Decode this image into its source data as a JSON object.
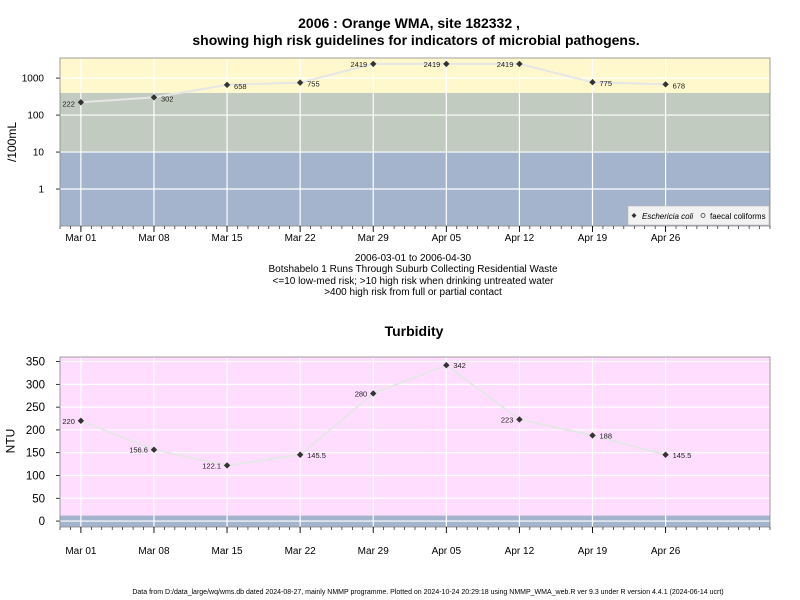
{
  "chart1": {
    "title_line1": "2006 : Orange WMA, site 182332 ,",
    "title_line2": "showing high risk guidelines for indicators of microbial pathogens.",
    "ylabel": "/100mL",
    "subtitle_lines": [
      "2006-03-01 to 2006-04-30",
      "Botshabelo 1 Runs Through Suburb Collecting Residential Waste",
      "<=10 low-med risk; >10 high risk when drinking untreated water",
      ">400 high risk from full or partial contact"
    ],
    "legend": [
      "Eschericia coli",
      "faecal coliforms"
    ],
    "colors": {
      "band_high": "#fff8cc",
      "band_mid": "#c2cbbf",
      "band_low": "#a3b4cc",
      "line": "#e6e6e6",
      "marker": "#333333"
    }
  },
  "chart2": {
    "title": "Turbidity",
    "ylabel": "NTU",
    "colors": {
      "background": "#ffddff",
      "band_low": "#a3b4cc",
      "line": "#e6e6e6",
      "marker": "#333333"
    }
  },
  "footer": "Data from D:/data_large/wq/wms.db dated 2024-08-27, mainly NMMP programme. Plotted on 2024-10-24 20:29:18 using NMMP_WMA_web.R ver 9.3 under R version 4.4.1 (2024-06-14 ucrt)",
  "chart_data": [
    {
      "type": "line",
      "scale": "log",
      "x_ticks": [
        "Mar 01",
        "Mar 08",
        "Mar 15",
        "Mar 22",
        "Mar 29",
        "Apr 05",
        "Apr 12",
        "Apr 19",
        "Apr 26"
      ],
      "y_ticks": [
        1,
        10,
        100,
        1000
      ],
      "ylim": [
        0.1,
        3500
      ],
      "xlim": [
        "2006-02-27",
        "2006-05-06"
      ],
      "bands": [
        {
          "from": 0.1,
          "to": 10
        },
        {
          "from": 10,
          "to": 400
        },
        {
          "from": 400,
          "to": 3500
        }
      ],
      "series": [
        {
          "name": "Eschericia coli",
          "x": [
            "2006-03-01",
            "2006-03-08",
            "2006-03-15",
            "2006-03-22",
            "2006-03-29",
            "2006-04-05",
            "2006-04-12",
            "2006-04-19",
            "2006-04-26"
          ],
          "values": [
            222,
            302,
            658,
            755,
            2419,
            2419,
            2419,
            775,
            678
          ],
          "labels": [
            "222",
            "302",
            "658",
            "755",
            "2419",
            "2419",
            "2419",
            "775",
            "678"
          ]
        }
      ]
    },
    {
      "type": "line",
      "x_ticks": [
        "Mar 01",
        "Mar 08",
        "Mar 15",
        "Mar 22",
        "Mar 29",
        "Apr 05",
        "Apr 12",
        "Apr 19",
        "Apr 26"
      ],
      "y_ticks": [
        0,
        50,
        100,
        150,
        200,
        250,
        300,
        350
      ],
      "ylim": [
        -13,
        360
      ],
      "xlim": [
        "2006-02-27",
        "2006-05-06"
      ],
      "bands": [
        {
          "from": -13,
          "to": 12
        }
      ],
      "series": [
        {
          "x": [
            "2006-03-01",
            "2006-03-08",
            "2006-03-15",
            "2006-03-22",
            "2006-03-29",
            "2006-04-05",
            "2006-04-12",
            "2006-04-19",
            "2006-04-26"
          ],
          "values": [
            220,
            156.6,
            122.1,
            145.5,
            280,
            342,
            223,
            188,
            145.5
          ],
          "labels": [
            "220",
            "156.6",
            "122.1",
            "145.5",
            "280",
            "342",
            "223",
            "188",
            "145.5"
          ]
        }
      ]
    }
  ]
}
